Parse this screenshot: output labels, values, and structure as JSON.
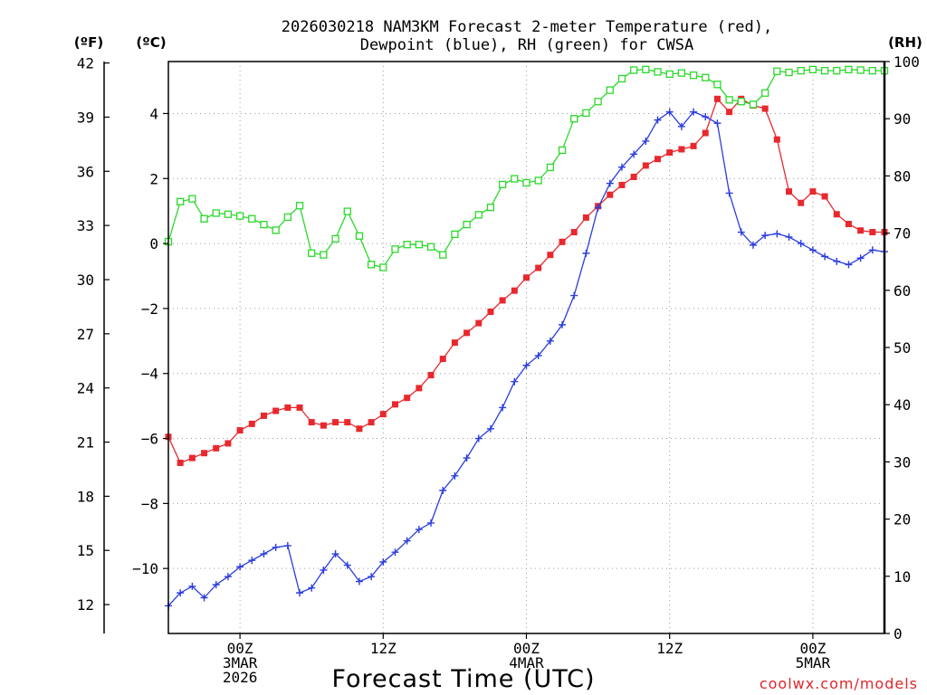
{
  "chart_data": {
    "type": "line",
    "title": "2026030218 NAM3KM Forecast 2-meter Temperature (red),",
    "subtitle": "Dewpoint (blue), RH (green) for CWSA",
    "xlabel": "Forecast Time (UTC)",
    "credit": "coolwx.com/models",
    "x_unit": "forecast hour from 2026-03-02 18Z",
    "xlim": [
      0,
      60
    ],
    "x_ticks": [
      {
        "hour": 6,
        "lines": [
          "00Z",
          "3MAR",
          "2026"
        ]
      },
      {
        "hour": 18,
        "lines": [
          "12Z"
        ]
      },
      {
        "hour": 30,
        "lines": [
          "00Z",
          "4MAR"
        ]
      },
      {
        "hour": 42,
        "lines": [
          "12Z"
        ]
      },
      {
        "hour": 54,
        "lines": [
          "00Z",
          "5MAR"
        ]
      }
    ],
    "axes": {
      "fahrenheit": {
        "label": "(ºF)",
        "ticks": [
          12,
          15,
          18,
          21,
          24,
          27,
          30,
          33,
          36,
          39,
          42
        ]
      },
      "celsius": {
        "label": "(ºC)",
        "ticks": [
          -10,
          -8,
          -6,
          -4,
          -2,
          0,
          2,
          4
        ],
        "ylim": [
          -12,
          5.6
        ]
      },
      "rh": {
        "label": "(RH)",
        "ticks": [
          0,
          10,
          20,
          30,
          40,
          50,
          60,
          70,
          80,
          90,
          100
        ],
        "ylim": [
          0,
          100
        ]
      }
    },
    "x": [
      0,
      1,
      2,
      3,
      4,
      5,
      6,
      7,
      8,
      9,
      10,
      11,
      12,
      13,
      14,
      15,
      16,
      17,
      18,
      19,
      20,
      21,
      22,
      23,
      24,
      25,
      26,
      27,
      28,
      29,
      30,
      31,
      32,
      33,
      34,
      35,
      36,
      37,
      38,
      39,
      40,
      41,
      42,
      43,
      44,
      45,
      46,
      47,
      48,
      49,
      50,
      51,
      52,
      53,
      54,
      55,
      56,
      57,
      58,
      59,
      60
    ],
    "series": [
      {
        "name": "2-meter Temperature",
        "color": "#e8282d",
        "axis": "celsius",
        "marker": "filled-square",
        "values": [
          -5.95,
          -6.75,
          -6.6,
          -6.45,
          -6.3,
          -6.15,
          -5.75,
          -5.55,
          -5.3,
          -5.15,
          -5.05,
          -5.05,
          -5.5,
          -5.6,
          -5.5,
          -5.5,
          -5.7,
          -5.5,
          -5.25,
          -4.95,
          -4.75,
          -4.45,
          -4.05,
          -3.55,
          -3.05,
          -2.75,
          -2.45,
          -2.1,
          -1.75,
          -1.45,
          -1.05,
          -0.75,
          -0.35,
          0.05,
          0.35,
          0.8,
          1.15,
          1.5,
          1.8,
          2.05,
          2.4,
          2.6,
          2.8,
          2.9,
          3.0,
          3.4,
          4.45,
          4.05,
          4.45,
          4.25,
          4.15,
          3.2,
          1.6,
          1.25,
          1.6,
          1.45,
          0.9,
          0.6,
          0.4,
          0.35,
          0.35
        ]
      },
      {
        "name": "Dewpoint",
        "color": "#2b3ddf",
        "axis": "celsius",
        "marker": "plus",
        "values": [
          -11.15,
          -10.75,
          -10.55,
          -10.9,
          -10.5,
          -10.25,
          -9.95,
          -9.75,
          -9.55,
          -9.35,
          -9.3,
          -10.75,
          -10.6,
          -10.05,
          -9.55,
          -9.9,
          -10.4,
          -10.25,
          -9.8,
          -9.5,
          -9.15,
          -8.8,
          -8.6,
          -7.6,
          -7.15,
          -6.6,
          -6.0,
          -5.7,
          -5.05,
          -4.25,
          -3.75,
          -3.45,
          -3.0,
          -2.5,
          -1.6,
          -0.3,
          1.1,
          1.85,
          2.35,
          2.75,
          3.15,
          3.8,
          4.05,
          3.6,
          4.05,
          3.9,
          3.7,
          1.55,
          0.35,
          -0.05,
          0.25,
          0.3,
          0.2,
          0.0,
          -0.2,
          -0.4,
          -0.55,
          -0.65,
          -0.45,
          -0.2,
          -0.25
        ]
      },
      {
        "name": "RH",
        "color": "#2bd92b",
        "axis": "rh",
        "marker": "open-square",
        "values": [
          68.5,
          75.5,
          76,
          72.5,
          73.5,
          73.3,
          73,
          72.5,
          71.5,
          70.5,
          72.8,
          74.8,
          66.5,
          66.2,
          69,
          73.8,
          69.5,
          64.5,
          64,
          67.2,
          68,
          68,
          67.6,
          66.2,
          69.8,
          71.5,
          73.2,
          74.5,
          78.5,
          79.5,
          78.8,
          79.2,
          81.5,
          84.5,
          90,
          91,
          93,
          95,
          97,
          98.5,
          98.6,
          98.2,
          97.8,
          98,
          97.6,
          97.2,
          96,
          93.3,
          93,
          92.5,
          94.5,
          98.3,
          98.1,
          98.4,
          98.6,
          98.4,
          98.4,
          98.6,
          98.5,
          98.4,
          98.4
        ]
      }
    ]
  }
}
